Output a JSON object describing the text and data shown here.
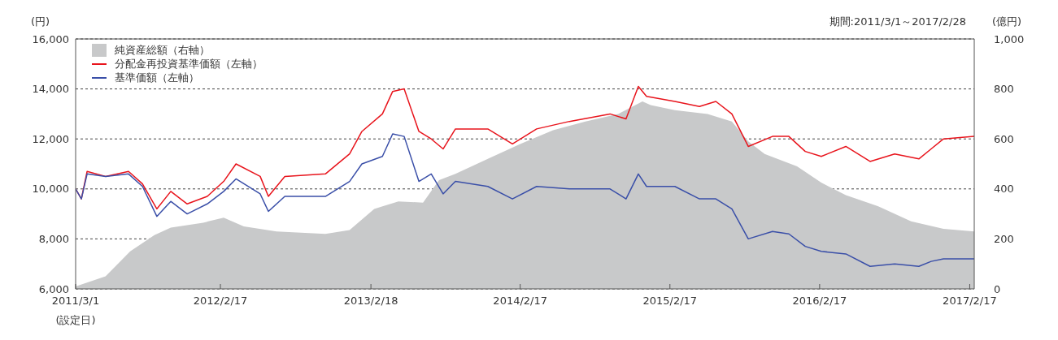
{
  "chart_data": {
    "type": "line",
    "subtitle": "期間:2011/3/1～2017/2/28",
    "ylabel": "(円)",
    "y2label": "(億円)",
    "annotations": [
      "(設定日)"
    ],
    "x": [
      "2011-03-01",
      "2011-03-15",
      "2011-03-29",
      "2011-05-13",
      "2011-07-08",
      "2011-08-11",
      "2011-09-15",
      "2011-10-19",
      "2011-11-28",
      "2012-01-16",
      "2012-02-25",
      "2012-03-26",
      "2012-05-24",
      "2012-06-13",
      "2012-07-23",
      "2012-10-30",
      "2012-12-28",
      "2013-01-27",
      "2013-03-18",
      "2013-04-12",
      "2013-05-10",
      "2013-06-15",
      "2013-07-15",
      "2013-08-13",
      "2013-09-12",
      "2013-11-30",
      "2014-01-29",
      "2014-03-29",
      "2014-06-17",
      "2014-09-24",
      "2014-11-02",
      "2014-12-02",
      "2014-12-22",
      "2015-03-01",
      "2015-04-30",
      "2015-06-09",
      "2015-07-18",
      "2015-08-27",
      "2015-10-25",
      "2015-12-04",
      "2016-01-13",
      "2016-02-21",
      "2016-04-21",
      "2016-06-19",
      "2016-08-18",
      "2016-10-16",
      "2016-11-15",
      "2016-12-15",
      "2017-02-28"
    ],
    "series": [
      {
        "name": "純資産総額（右軸）",
        "type": "area",
        "axis": "y2",
        "color": "#c8c9ca",
        "x": [
          "2011-03-01",
          "2011-05-13",
          "2011-07-12",
          "2011-09-09",
          "2011-10-19",
          "2012-01-06",
          "2012-02-25",
          "2012-04-14",
          "2012-07-03",
          "2012-10-30",
          "2012-12-28",
          "2013-02-26",
          "2013-04-26",
          "2013-06-25",
          "2013-08-03",
          "2013-09-12",
          "2013-11-30",
          "2014-02-18",
          "2014-05-08",
          "2014-07-26",
          "2014-10-14",
          "2014-12-12",
          "2015-01-01",
          "2015-03-01",
          "2015-05-20",
          "2015-07-18",
          "2015-08-27",
          "2015-10-06",
          "2015-12-24",
          "2016-02-21",
          "2016-04-21",
          "2016-07-09",
          "2016-09-27",
          "2016-12-15",
          "2017-02-28"
        ],
        "values": [
          10,
          50,
          150,
          215,
          245,
          265,
          285,
          250,
          230,
          220,
          235,
          320,
          350,
          345,
          435,
          460,
          520,
          580,
          635,
          670,
          700,
          750,
          735,
          715,
          700,
          670,
          590,
          540,
          490,
          425,
          375,
          330,
          270,
          240,
          230
        ]
      },
      {
        "name": "分配金再投資基準価額（左軸）",
        "color": "#e8141c",
        "values": [
          10000,
          9600,
          10700,
          10500,
          10700,
          10200,
          9200,
          9900,
          9400,
          9700,
          10300,
          11000,
          10500,
          9700,
          10500,
          10600,
          11400,
          12300,
          13000,
          13900,
          14000,
          12300,
          12000,
          11600,
          12400,
          12400,
          11800,
          12400,
          12700,
          13000,
          12800,
          14100,
          13700,
          13500,
          13300,
          13500,
          13000,
          11700,
          12100,
          12100,
          11500,
          11300,
          11700,
          11100,
          11400,
          11200,
          11600,
          12000,
          12100
        ]
      },
      {
        "name": "基準価額（左軸）",
        "color": "#3a4fa8",
        "values": [
          10000,
          9600,
          10600,
          10500,
          10600,
          10100,
          8900,
          9500,
          9000,
          9400,
          9900,
          10400,
          9800,
          9100,
          9700,
          9700,
          10300,
          11000,
          11300,
          12200,
          12100,
          10300,
          10600,
          9800,
          10300,
          10100,
          9600,
          10100,
          10000,
          10000,
          9600,
          10600,
          10100,
          10100,
          9600,
          9600,
          9200,
          8000,
          8300,
          8200,
          7700,
          7500,
          7400,
          6900,
          7000,
          6900,
          7100,
          7200,
          7200
        ]
      }
    ],
    "xlim": [
      "2011-03-01",
      "2017-02-28"
    ],
    "xticks": [
      {
        "value": "2011-03-01",
        "label": "2011/3/1"
      },
      {
        "value": "2012-02-17",
        "label": "2012/2/17"
      },
      {
        "value": "2013-02-18",
        "label": "2013/2/18"
      },
      {
        "value": "2014-02-17",
        "label": "2014/2/17"
      },
      {
        "value": "2015-02-17",
        "label": "2015/2/17"
      },
      {
        "value": "2016-02-17",
        "label": "2016/2/17"
      },
      {
        "value": "2017-02-17",
        "label": "2017/2/17"
      }
    ],
    "ylim": [
      6000,
      16000
    ],
    "yticks": [
      {
        "value": 6000,
        "label": "6,000"
      },
      {
        "value": 8000,
        "label": "8,000"
      },
      {
        "value": 10000,
        "label": "10,000"
      },
      {
        "value": 12000,
        "label": "12,000"
      },
      {
        "value": 14000,
        "label": "14,000"
      },
      {
        "value": 16000,
        "label": "16,000"
      }
    ],
    "y2lim": [
      0,
      1000
    ],
    "y2ticks": [
      0,
      200,
      400,
      600,
      800,
      {
        "value": 1000,
        "label": "1,000"
      }
    ],
    "grid": "y",
    "legend": "top left",
    "marker": "none",
    "line_style": "solid"
  }
}
